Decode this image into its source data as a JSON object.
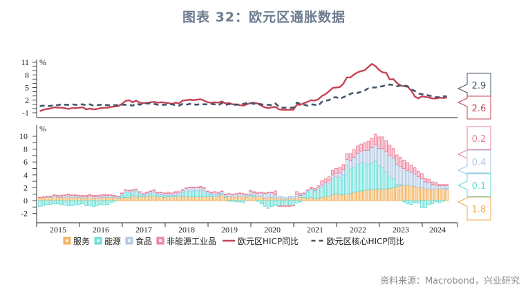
{
  "title": "图表 32：欧元区通胀数据",
  "source": "资料来源：Macrobond，兴业研究",
  "colors": {
    "services": "#f0a94b",
    "energy": "#5fdcd6",
    "food": "#a9c4e2",
    "nei_goods": "#ef7a94",
    "hicp": "#c44354",
    "core": "#44546a"
  },
  "chart_data": [
    {
      "type": "line",
      "title": "欧元区HICP同比 vs 核心HICP同比",
      "ylabel": "%",
      "ylim": [
        -1,
        11
      ],
      "yticks": [
        -1,
        2,
        5,
        8,
        11
      ],
      "x_start": "2015-01",
      "x_end": "2024-07",
      "frequency": "monthly",
      "series": [
        {
          "name": "欧元区HICP同比",
          "style": "solid",
          "color": "#c44354",
          "values": [
            -0.6,
            -0.3,
            -0.1,
            0.0,
            0.3,
            0.2,
            0.2,
            0.1,
            -0.1,
            0.1,
            0.1,
            0.2,
            0.3,
            -0.2,
            0.0,
            -0.2,
            -0.1,
            0.1,
            0.2,
            0.2,
            0.4,
            0.5,
            0.6,
            1.1,
            1.8,
            2.0,
            1.5,
            1.9,
            1.4,
            1.3,
            1.3,
            1.5,
            1.6,
            1.4,
            1.5,
            1.4,
            1.3,
            1.1,
            1.4,
            1.2,
            1.9,
            2.0,
            2.1,
            2.0,
            2.1,
            2.2,
            1.9,
            1.5,
            1.4,
            1.5,
            1.4,
            1.7,
            1.2,
            1.3,
            1.0,
            1.0,
            0.8,
            0.7,
            1.0,
            1.3,
            1.4,
            1.2,
            0.7,
            0.3,
            0.1,
            0.3,
            0.4,
            -0.2,
            -0.3,
            -0.3,
            -0.3,
            -0.3,
            0.9,
            0.9,
            1.3,
            1.6,
            2.0,
            1.9,
            2.2,
            3.0,
            3.4,
            4.1,
            4.9,
            5.0,
            5.1,
            5.9,
            7.4,
            7.4,
            8.1,
            8.6,
            8.9,
            9.1,
            9.9,
            10.6,
            10.1,
            9.2,
            8.6,
            8.5,
            6.9,
            7.0,
            6.1,
            5.5,
            5.3,
            5.2,
            4.3,
            2.9,
            2.4,
            2.9,
            2.8,
            2.6,
            2.4,
            2.4,
            2.6,
            2.5,
            2.6
          ],
          "last_value_label": "2.6"
        },
        {
          "name": "欧元区核心HICP同比",
          "style": "dashed",
          "color": "#44546a",
          "values": [
            0.6,
            0.7,
            0.6,
            0.6,
            0.9,
            0.8,
            1.0,
            0.9,
            0.9,
            1.0,
            0.9,
            0.9,
            1.0,
            0.8,
            1.0,
            0.7,
            0.8,
            0.9,
            0.9,
            0.8,
            0.8,
            0.8,
            0.8,
            0.9,
            0.9,
            0.9,
            0.7,
            1.2,
            0.9,
            1.1,
            1.2,
            1.2,
            1.1,
            0.9,
            0.9,
            0.9,
            1.0,
            1.0,
            0.8,
            0.7,
            1.1,
            0.9,
            1.1,
            1.0,
            0.9,
            1.1,
            1.0,
            1.0,
            1.1,
            1.0,
            0.8,
            1.3,
            0.8,
            1.1,
            0.9,
            0.9,
            1.0,
            1.1,
            1.3,
            1.3,
            1.1,
            1.2,
            1.0,
            0.9,
            0.9,
            0.8,
            1.2,
            0.4,
            0.2,
            0.2,
            0.2,
            0.2,
            1.4,
            1.1,
            0.9,
            0.7,
            1.0,
            0.9,
            0.7,
            1.6,
            1.9,
            2.0,
            2.6,
            2.7,
            2.3,
            2.7,
            3.0,
            3.5,
            3.8,
            3.7,
            4.0,
            4.3,
            4.8,
            5.0,
            5.0,
            5.2,
            5.3,
            5.6,
            5.7,
            5.6,
            5.3,
            5.5,
            5.5,
            5.3,
            4.5,
            4.2,
            3.6,
            3.4,
            3.3,
            3.1,
            2.9,
            2.7,
            2.7,
            2.9,
            2.9
          ],
          "last_value_label": "2.9"
        }
      ]
    },
    {
      "type": "bar",
      "stacked": true,
      "title": "欧元区HICP分项贡献",
      "ylabel": "%",
      "ylim": [
        -2,
        11
      ],
      "yticks": [
        -2,
        0,
        2,
        4,
        6,
        8,
        10
      ],
      "x_start": "2015-01",
      "x_end": "2024-07",
      "frequency": "monthly",
      "categories": [
        "2015",
        "2016",
        "2017",
        "2018",
        "2019",
        "2020",
        "2021",
        "2022",
        "2023",
        "2024"
      ],
      "series": [
        {
          "name": "服务",
          "color": "#f0a94b",
          "values": [
            0.5,
            0.5,
            0.5,
            0.5,
            0.6,
            0.5,
            0.5,
            0.5,
            0.6,
            0.5,
            0.5,
            0.5,
            0.4,
            0.4,
            0.6,
            0.4,
            0.4,
            0.5,
            0.5,
            0.5,
            0.5,
            0.5,
            0.4,
            0.5,
            0.5,
            0.5,
            0.8,
            0.6,
            0.6,
            0.6,
            0.7,
            0.7,
            0.7,
            0.6,
            0.6,
            0.5,
            0.6,
            0.6,
            0.6,
            0.7,
            0.7,
            0.6,
            0.6,
            0.6,
            0.6,
            0.6,
            0.6,
            0.6,
            0.6,
            0.6,
            0.7,
            0.9,
            0.5,
            0.7,
            0.7,
            0.6,
            0.7,
            0.7,
            0.6,
            0.8,
            0.6,
            0.6,
            0.6,
            0.4,
            0.4,
            0.5,
            0.4,
            0.3,
            0.3,
            0.2,
            0.3,
            0.3,
            0.6,
            0.5,
            0.5,
            0.4,
            0.5,
            0.3,
            0.4,
            0.5,
            0.7,
            0.7,
            0.9,
            1.1,
            1.0,
            0.9,
            1.0,
            1.1,
            1.3,
            1.4,
            1.5,
            1.6,
            1.7,
            1.7,
            1.8,
            1.8,
            1.8,
            1.8,
            1.9,
            2.0,
            2.2,
            2.3,
            2.4,
            2.4,
            2.3,
            2.2,
            2.1,
            2.0,
            1.8,
            1.8,
            1.7,
            1.8,
            1.8,
            1.8,
            1.8
          ],
          "last_value_label": "1.8"
        },
        {
          "name": "能源",
          "color": "#5fdcd6",
          "values": [
            -0.9,
            -0.8,
            -0.6,
            -0.6,
            -0.5,
            -0.5,
            -0.6,
            -0.7,
            -0.8,
            -0.8,
            -0.7,
            -0.6,
            -0.5,
            -0.8,
            -0.8,
            -0.9,
            -0.8,
            -0.6,
            -0.7,
            -0.6,
            -0.3,
            -0.1,
            0.0,
            0.3,
            0.8,
            0.7,
            0.6,
            0.8,
            0.4,
            0.2,
            0.2,
            0.4,
            0.5,
            0.3,
            0.3,
            0.3,
            0.2,
            0.2,
            0.2,
            0.3,
            0.6,
            0.8,
            0.9,
            0.9,
            0.9,
            1.0,
            0.9,
            0.5,
            0.3,
            0.3,
            0.1,
            0.2,
            0.1,
            -0.1,
            -0.1,
            -0.2,
            -0.2,
            -0.3,
            0.0,
            0.2,
            0.2,
            -0.1,
            -0.5,
            -0.9,
            -1.2,
            -0.9,
            -0.8,
            -0.8,
            -0.8,
            -0.8,
            -0.8,
            -0.7,
            -0.4,
            -0.2,
            0.4,
            1.0,
            1.3,
            1.2,
            1.4,
            1.5,
            1.7,
            2.0,
            2.6,
            2.6,
            2.6,
            3.1,
            4.4,
            3.8,
            3.9,
            4.2,
            4.4,
            4.2,
            3.9,
            4.1,
            4.3,
            3.6,
            3.4,
            2.7,
            1.9,
            1.4,
            0.3,
            0.2,
            -0.2,
            -0.5,
            -0.6,
            -0.3,
            -0.4,
            -1.1,
            -1.1,
            -0.6,
            -0.5,
            -0.2,
            -0.3,
            -0.1,
            0.1,
            0.2,
            0.1
          ],
          "last_value_label": "0.1"
        },
        {
          "name": "食品",
          "color": "#a9c4e2",
          "values": [
            0.0,
            0.1,
            0.2,
            0.2,
            0.2,
            0.2,
            0.2,
            0.3,
            0.3,
            0.3,
            0.3,
            0.2,
            0.2,
            0.2,
            0.2,
            0.2,
            0.2,
            0.2,
            0.3,
            0.3,
            0.3,
            0.2,
            0.2,
            0.3,
            0.3,
            0.3,
            0.2,
            0.3,
            0.3,
            0.2,
            0.3,
            0.3,
            0.3,
            0.3,
            0.3,
            0.3,
            0.3,
            0.2,
            0.4,
            0.3,
            0.3,
            0.5,
            0.5,
            0.5,
            0.5,
            0.4,
            0.4,
            0.3,
            0.3,
            0.4,
            0.3,
            0.3,
            0.3,
            0.3,
            0.2,
            0.4,
            0.4,
            0.3,
            0.3,
            0.4,
            0.4,
            0.5,
            0.6,
            0.7,
            0.8,
            0.7,
            0.5,
            0.4,
            0.3,
            0.3,
            0.4,
            0.4,
            0.4,
            0.3,
            0.2,
            0.2,
            0.1,
            0.1,
            0.3,
            0.4,
            0.4,
            0.4,
            0.5,
            0.5,
            0.7,
            0.8,
            1.0,
            1.3,
            1.5,
            1.7,
            1.8,
            2.0,
            2.2,
            2.4,
            2.6,
            2.7,
            2.9,
            3.1,
            3.2,
            3.2,
            3.1,
            2.8,
            2.6,
            2.3,
            2.1,
            1.9,
            1.6,
            1.4,
            1.1,
            1.0,
            0.8,
            0.6,
            0.5,
            0.5,
            0.4
          ],
          "last_value_label": "0.4"
        },
        {
          "name": "非能源工业品",
          "color": "#ef7a94",
          "values": [
            0.0,
            0.0,
            0.0,
            0.0,
            0.1,
            0.1,
            0.1,
            0.1,
            0.1,
            0.1,
            0.1,
            0.1,
            0.2,
            0.2,
            0.2,
            0.2,
            0.2,
            0.2,
            0.2,
            0.1,
            0.1,
            0.1,
            0.1,
            0.1,
            0.1,
            0.1,
            0.1,
            0.1,
            0.1,
            0.1,
            0.1,
            0.1,
            0.2,
            0.1,
            0.1,
            0.1,
            0.2,
            0.2,
            0.2,
            0.1,
            0.1,
            0.1,
            0.1,
            0.1,
            0.1,
            0.2,
            0.1,
            0.1,
            0.1,
            0.1,
            0.2,
            0.1,
            0.1,
            0.1,
            0.1,
            0.1,
            0.1,
            0.1,
            0.1,
            0.2,
            0.2,
            0.2,
            0.1,
            0.1,
            0.1,
            0.1,
            0.6,
            -0.1,
            -0.1,
            -0.1,
            -0.1,
            -0.1,
            0.4,
            0.3,
            0.1,
            0.1,
            0.2,
            0.3,
            0.2,
            0.7,
            0.6,
            0.6,
            0.7,
            0.8,
            0.8,
            0.8,
            0.9,
            1.1,
            1.2,
            1.2,
            1.1,
            1.2,
            1.4,
            1.5,
            1.6,
            1.8,
            1.8,
            1.7,
            1.6,
            1.5,
            1.5,
            1.4,
            1.3,
            1.2,
            1.1,
            1.0,
            0.9,
            0.8,
            0.6,
            0.5,
            0.4,
            0.4,
            0.2,
            0.2,
            0.2
          ],
          "last_value_label": "0.2"
        }
      ]
    }
  ],
  "axes": {
    "top_unit": "%",
    "bottom_unit": "%",
    "top_yticks": [
      "11",
      "8",
      "5",
      "2",
      "-1"
    ],
    "bottom_yticks": [
      "10",
      "8",
      "6",
      "4",
      "2",
      "0",
      "-2"
    ],
    "years": [
      "2015",
      "2016",
      "2017",
      "2018",
      "2019",
      "2020",
      "2021",
      "2022",
      "2023",
      "2024"
    ]
  },
  "legend": [
    {
      "label": "服务",
      "type": "box",
      "color": "#f0a94b"
    },
    {
      "label": "能源",
      "type": "box",
      "color": "#5fdcd6"
    },
    {
      "label": "食品",
      "type": "box",
      "color": "#a9c4e2"
    },
    {
      "label": "非能源工业品",
      "type": "box",
      "color": "#ef7a94"
    },
    {
      "label": "欧元区HICP同比",
      "type": "line",
      "color": "#c44354"
    },
    {
      "label": "欧元区核心HICP同比",
      "type": "dash",
      "color": "#44546a"
    }
  ],
  "callouts": {
    "top": [
      {
        "value": "2.9",
        "color": "#44546a"
      },
      {
        "value": "2.6",
        "color": "#c44354"
      }
    ],
    "bottom": [
      {
        "value": "0.2",
        "color": "#ef7a94"
      },
      {
        "value": "0.4",
        "color": "#a9c4e2"
      },
      {
        "value": "0.1",
        "color": "#5fdcd6"
      },
      {
        "value": "1.8",
        "color": "#f0a94b"
      }
    ]
  }
}
